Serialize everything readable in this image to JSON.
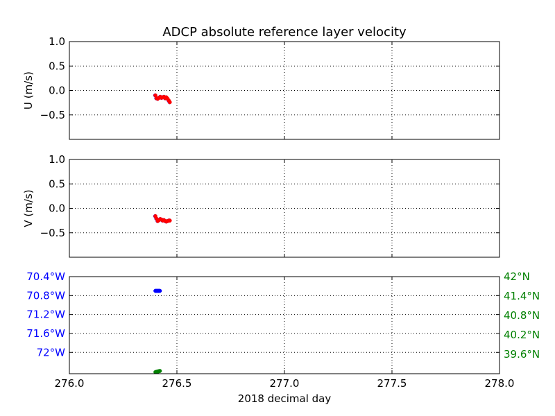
{
  "chart_data": {
    "title": "ADCP absolute reference layer velocity",
    "xlabel": "2018 decimal day",
    "xlim": [
      276.0,
      278.0
    ],
    "xticks": [
      "276.0",
      "276.5",
      "277.0",
      "277.5",
      "278.0"
    ],
    "grid": true,
    "panels": [
      {
        "type": "scatter",
        "ylabel": "U (m/s)",
        "ylim": [
          -1.0,
          1.0
        ],
        "yticks": [
          {
            "value": 1.0,
            "label": "1.0"
          },
          {
            "value": 0.5,
            "label": "0.5"
          },
          {
            "value": 0.0,
            "label": "0.0"
          },
          {
            "value": -0.5,
            "label": "−0.5"
          }
        ],
        "series": [
          {
            "color": "#0000ff",
            "x": [
              276.399,
              276.404,
              276.41,
              276.416,
              276.422,
              276.428,
              276.433,
              276.439,
              276.445,
              276.45,
              276.456,
              276.462,
              276.466
            ],
            "y": [
              -0.1,
              -0.16,
              -0.17,
              -0.15,
              -0.13,
              -0.15,
              -0.14,
              -0.13,
              -0.16,
              -0.14,
              -0.17,
              -0.21,
              -0.24
            ]
          },
          {
            "color": "#ff0000",
            "x": [
              276.4,
              276.405,
              276.411,
              276.417,
              276.423,
              276.429,
              276.434,
              276.44,
              276.446,
              276.451,
              276.457,
              276.463,
              276.467
            ],
            "y": [
              -0.1,
              -0.16,
              -0.17,
              -0.15,
              -0.13,
              -0.15,
              -0.14,
              -0.13,
              -0.16,
              -0.14,
              -0.17,
              -0.21,
              -0.24
            ]
          }
        ]
      },
      {
        "type": "scatter",
        "ylabel": "V (m/s)",
        "ylim": [
          -1.0,
          1.0
        ],
        "yticks": [
          {
            "value": 1.0,
            "label": "1.0"
          },
          {
            "value": 0.5,
            "label": "0.5"
          },
          {
            "value": 0.0,
            "label": "0.0"
          },
          {
            "value": -0.5,
            "label": "−0.5"
          }
        ],
        "series": [
          {
            "color": "#0000ff",
            "x": [
              276.399,
              276.404,
              276.41,
              276.416,
              276.422,
              276.428,
              276.433,
              276.439,
              276.445,
              276.45,
              276.456,
              276.462,
              276.466
            ],
            "y": [
              -0.16,
              -0.21,
              -0.26,
              -0.24,
              -0.22,
              -0.23,
              -0.25,
              -0.24,
              -0.26,
              -0.27,
              -0.26,
              -0.25,
              -0.25
            ]
          },
          {
            "color": "#ff0000",
            "x": [
              276.4,
              276.405,
              276.411,
              276.417,
              276.423,
              276.429,
              276.434,
              276.44,
              276.446,
              276.451,
              276.457,
              276.463,
              276.467
            ],
            "y": [
              -0.16,
              -0.21,
              -0.26,
              -0.24,
              -0.22,
              -0.23,
              -0.25,
              -0.24,
              -0.26,
              -0.27,
              -0.26,
              -0.25,
              -0.25
            ]
          }
        ]
      },
      {
        "type": "scatter",
        "left_axis": {
          "color": "#0000ff",
          "ylim": [
            -72.45,
            -70.4
          ],
          "yticks": [
            {
              "value": -70.4,
              "label": "70.4°W"
            },
            {
              "value": -70.8,
              "label": "70.8°W"
            },
            {
              "value": -71.2,
              "label": "71.2°W"
            },
            {
              "value": -71.6,
              "label": "71.6°W"
            },
            {
              "value": -72.0,
              "label": "72°W"
            }
          ]
        },
        "right_axis": {
          "color": "#008000",
          "ylim": [
            39.0,
            42.0
          ],
          "yticks": [
            {
              "value": 42.0,
              "label": "42°N"
            },
            {
              "value": 41.4,
              "label": "41.4°N"
            },
            {
              "value": 40.8,
              "label": "40.8°N"
            },
            {
              "value": 40.2,
              "label": "40.2°N"
            },
            {
              "value": 39.6,
              "label": "39.6°N"
            }
          ]
        },
        "series": [
          {
            "color": "#0000ff",
            "axis": "left",
            "x": [
              276.4,
              276.403,
              276.406,
              276.409,
              276.412,
              276.415,
              276.418,
              276.421
            ],
            "y": [
              -70.7,
              -70.7,
              -70.7,
              -70.7,
              -70.7,
              -70.7,
              -70.7,
              -70.7
            ]
          },
          {
            "color": "#008000",
            "axis": "right",
            "x": [
              276.4,
              276.403,
              276.406,
              276.409,
              276.412,
              276.415,
              276.418,
              276.421
            ],
            "y": [
              39.05,
              39.055,
              39.06,
              39.065,
              39.07,
              39.075,
              39.08,
              39.085
            ]
          }
        ]
      }
    ]
  }
}
